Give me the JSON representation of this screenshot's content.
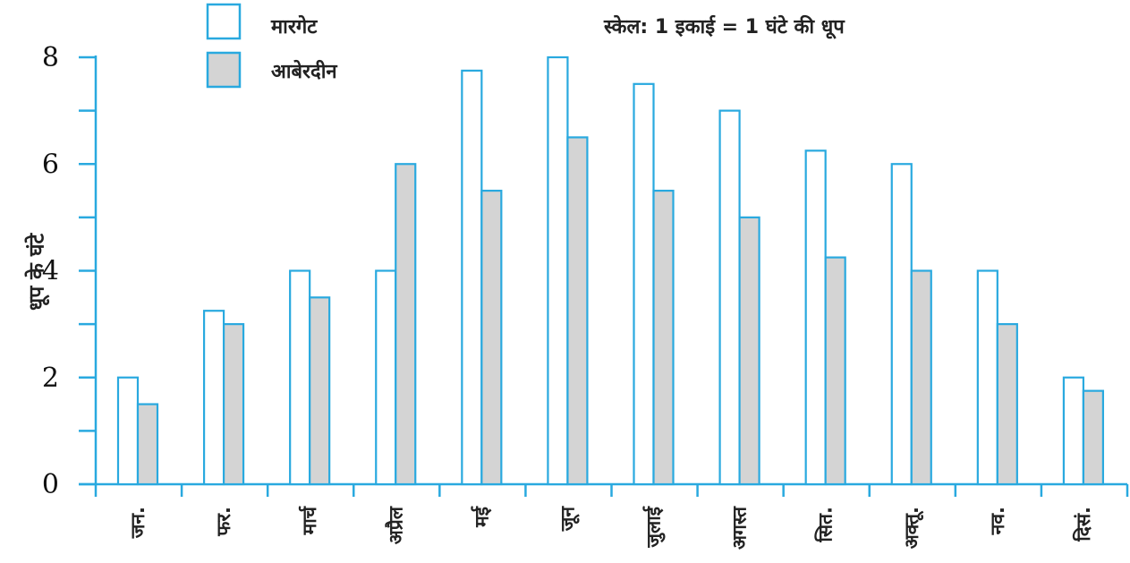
{
  "chart_data": {
    "type": "bar",
    "categories": [
      "जन.",
      "फर.",
      "मार्च",
      "अप्रैल",
      "मई",
      "जून",
      "जुलाई",
      "अगस्त",
      "सित.",
      "अक्तू.",
      "नव.",
      "दिसं."
    ],
    "series": [
      {
        "name": "मारगेट",
        "values": [
          2,
          3.25,
          4,
          4,
          7.75,
          8,
          7.5,
          7,
          6.25,
          6,
          4,
          2
        ]
      },
      {
        "name": "आबेरदीन",
        "values": [
          1.5,
          3,
          3.5,
          6,
          5.5,
          6.5,
          5.5,
          5,
          4.25,
          4,
          3,
          1.75
        ]
      }
    ],
    "ylabel": "धूप के घंटे",
    "xlabel": "",
    "ylim": [
      0,
      8
    ],
    "yticks": [
      0,
      2,
      4,
      6,
      8
    ],
    "yminor_step": 1,
    "annotation": "स्केल: 1 इकाई = 1 घंटे की धूप",
    "legend_position": "top-left",
    "grid": false,
    "colors": {
      "axis": "#29a9df",
      "series_1_fill": "#ffffff",
      "series_2_fill": "#d4d4d4",
      "bar_stroke": "#29a9df"
    }
  }
}
